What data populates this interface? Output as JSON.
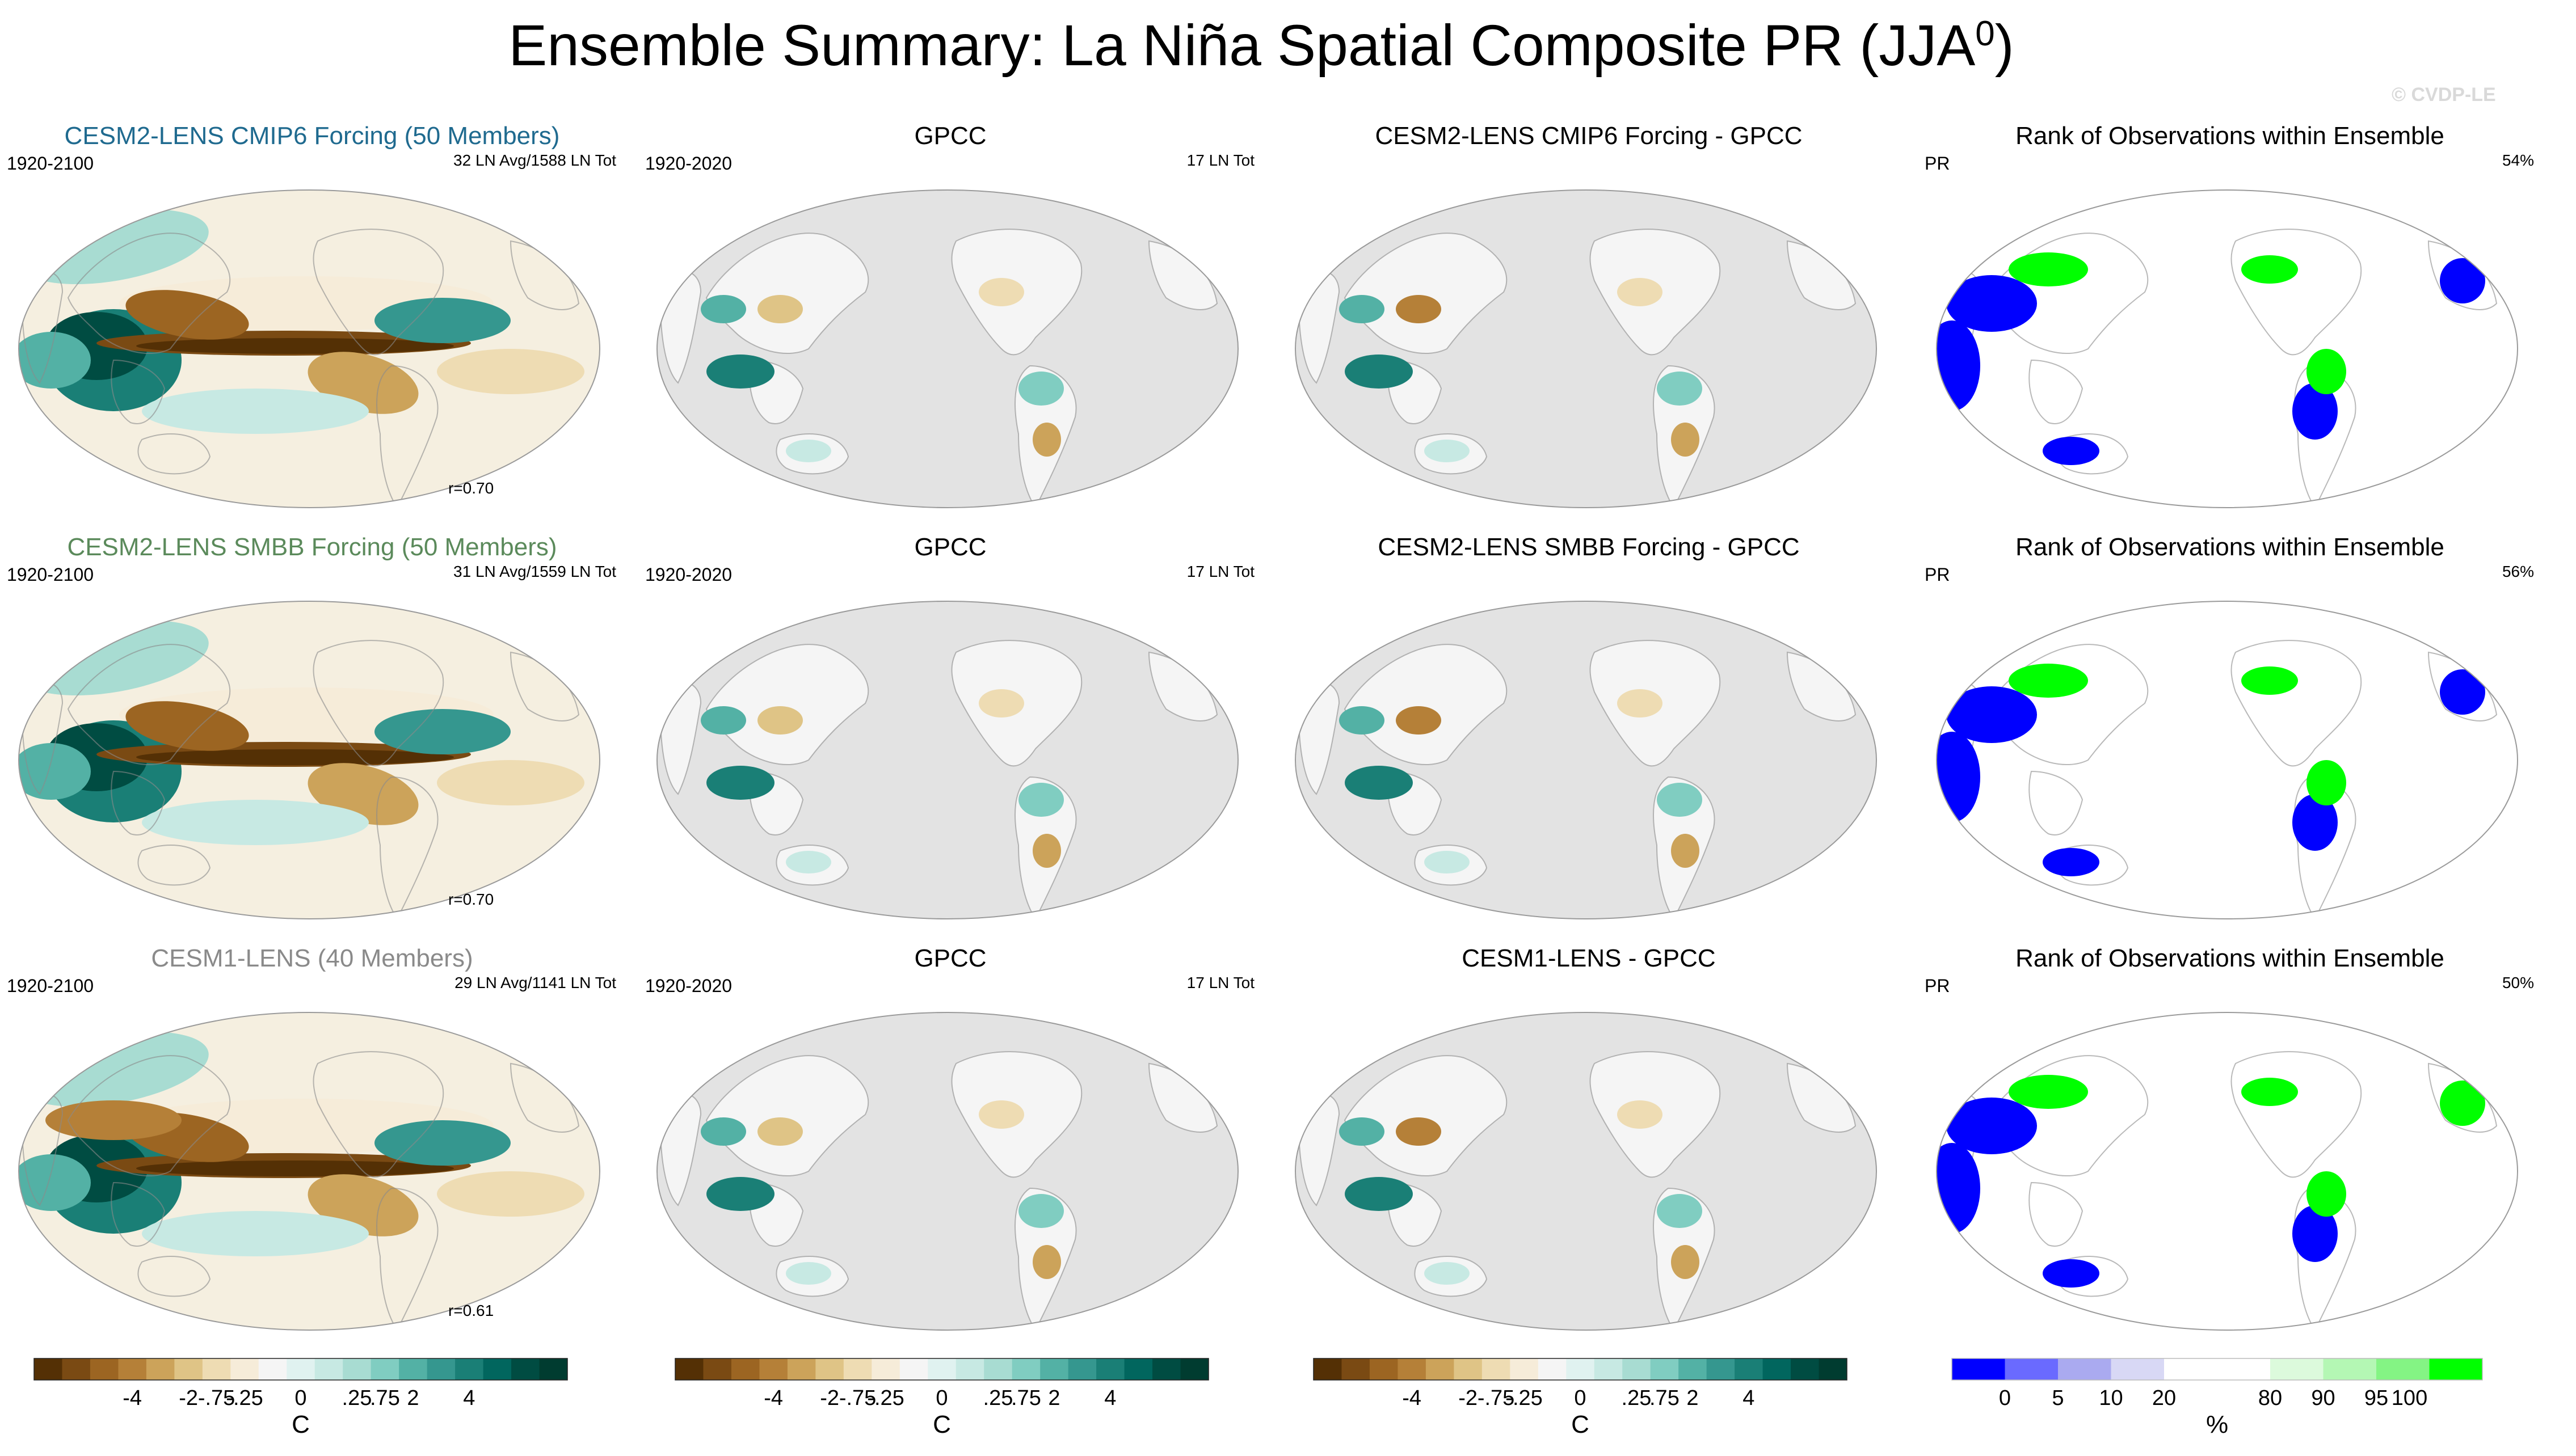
{
  "title": {
    "main": "Ensemble Summary: La Niña Spatial Composite PR (JJA",
    "superscript": "0",
    "close": ")"
  },
  "copyright": "© CVDP-LE",
  "colors": {
    "diverging": [
      "#543005",
      "#7a4a13",
      "#9c6522",
      "#b58038",
      "#cca35a",
      "#dfc486",
      "#eedcb3",
      "#f6ecd9",
      "#f5f5f5",
      "#e0f2f0",
      "#c7e9e3",
      "#a8dcd2",
      "#80cdc1",
      "#53b1a5",
      "#35978f",
      "#1a7f76",
      "#01665e",
      "#004c42",
      "#003c30"
    ],
    "rank": [
      "#0000ff",
      "#6a6aff",
      "#aaaaf0",
      "#d8d8f5",
      "#ffffff",
      "#ffffff",
      "#dcfadc",
      "#b4f7b4",
      "#84f484",
      "#00ff00"
    ],
    "land_gray": "#e3e3e3",
    "ocean_cream": "#f5efe0"
  },
  "rows": [
    {
      "model": {
        "title": "CESM2-LENS CMIP6 Forcing (50 Members)",
        "title_color": "#1f6a8f",
        "period": "1920-2100",
        "counts": "32 LN Avg/1588 LN Tot",
        "corr": "r=0.70"
      },
      "obs": {
        "title": "GPCC",
        "period": "1920-2020",
        "counts": "17 LN Tot"
      },
      "diff": {
        "title": "CESM2-LENS CMIP6 Forcing - GPCC"
      },
      "rank": {
        "title": "Rank of Observations within Ensemble",
        "variable": "PR",
        "percent": "54%"
      }
    },
    {
      "model": {
        "title": "CESM2-LENS SMBB Forcing (50 Members)",
        "title_color": "#5b8a5b",
        "period": "1920-2100",
        "counts": "31 LN Avg/1559 LN Tot",
        "corr": "r=0.70"
      },
      "obs": {
        "title": "GPCC",
        "period": "1920-2020",
        "counts": "17 LN Tot"
      },
      "diff": {
        "title": "CESM2-LENS SMBB Forcing - GPCC"
      },
      "rank": {
        "title": "Rank of Observations within Ensemble",
        "variable": "PR",
        "percent": "56%"
      }
    },
    {
      "model": {
        "title": "CESM1-LENS (40 Members)",
        "title_color": "#8a8a8a",
        "period": "1920-2100",
        "counts": "29 LN Avg/1141 LN Tot",
        "corr": "r=0.61"
      },
      "obs": {
        "title": "GPCC",
        "period": "1920-2020",
        "counts": "17 LN Tot"
      },
      "diff": {
        "title": "CESM1-LENS - GPCC"
      },
      "rank": {
        "title": "Rank of Observations within Ensemble",
        "variable": "PR",
        "percent": "50%"
      }
    }
  ],
  "colorbars": [
    {
      "labels": [
        "-4",
        "-2",
        "-.75",
        "-.25",
        "0",
        ".25",
        ".75",
        "2",
        "4"
      ],
      "units": "C"
    },
    {
      "labels": [
        "-4",
        "-2",
        "-.75",
        "-.25",
        "0",
        ".25",
        ".75",
        "2",
        "4"
      ],
      "units": "C"
    },
    {
      "labels": [
        "-4",
        "-2",
        "-.75",
        "-.25",
        "0",
        ".25",
        ".75",
        "2",
        "4"
      ],
      "units": "C"
    },
    {
      "labels": [
        "0",
        "5",
        "10",
        "20",
        "80",
        "90",
        "95",
        "100"
      ],
      "units": "%"
    }
  ],
  "chart_data": {
    "type": "heatmap",
    "title": "Ensemble Summary: La Niña Spatial Composite PR (JJA0)",
    "variable": "PR",
    "season": "JJA",
    "panels_per_row": [
      "model ensemble composite",
      "GPCC observed composite",
      "model minus GPCC",
      "rank of observations within ensemble"
    ],
    "pattern_correlations": [
      0.7,
      0.7,
      0.61
    ],
    "rank_percent": [
      54,
      56,
      50
    ],
    "diverging_levels": [
      -4,
      -2,
      -0.75,
      -0.25,
      0,
      0.25,
      0.75,
      2,
      4
    ],
    "rank_levels": [
      0,
      5,
      10,
      20,
      80,
      90,
      95,
      100
    ]
  }
}
